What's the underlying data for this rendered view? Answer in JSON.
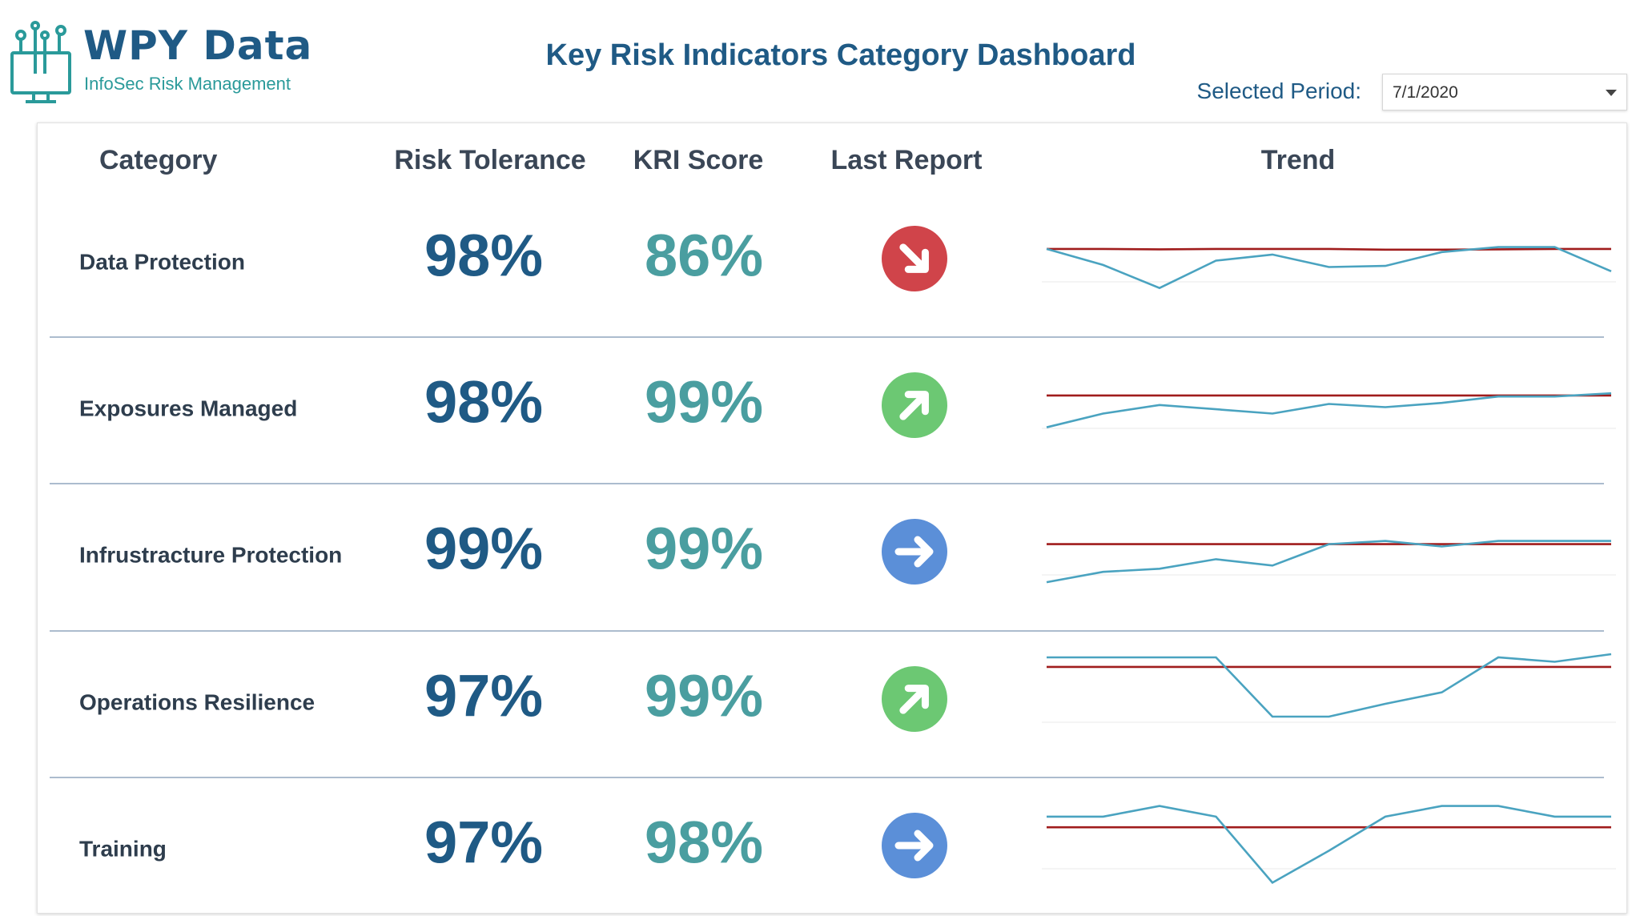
{
  "header": {
    "logo_title": "WPY Data",
    "logo_subtitle": "InfoSec Risk Management",
    "title": "Key Risk Indicators Category Dashboard",
    "period_label": "Selected Period:",
    "period_value": "7/1/2020"
  },
  "table": {
    "columns": [
      "Category",
      "Risk Tolerance",
      "KRI Score",
      "Last Report",
      "Trend"
    ],
    "rows": [
      {
        "category": "Data Protection",
        "risk_tolerance": "98%",
        "kri_score": "86%",
        "last_report": "down",
        "trend": {
          "values": [
            98,
            89.4,
            77,
            91.7,
            95,
            88.3,
            88.9,
            96.3,
            99,
            99,
            86
          ],
          "threshold": [
            98,
            98,
            97.8,
            98,
            98,
            98,
            97.6,
            97.6,
            97.8,
            98,
            98
          ],
          "ylim": [
            70,
            118.6
          ]
        }
      },
      {
        "category": "Exposures Managed",
        "risk_tolerance": "98%",
        "kri_score": "99%",
        "last_report": "up",
        "trend": {
          "values": [
            83,
            89.5,
            93.5,
            91.5,
            89.5,
            94,
            92.5,
            94.5,
            97.5,
            97.5,
            99
          ],
          "threshold": [
            98,
            98,
            98,
            98,
            98,
            98,
            98,
            98,
            98,
            98,
            98
          ],
          "ylim": [
            73.5,
            116
          ]
        }
      },
      {
        "category": "Infrustracture Protection",
        "risk_tolerance": "99%",
        "kri_score": "99%",
        "last_report": "right",
        "trend": {
          "values": [
            94.2,
            95.5,
            95.9,
            97.1,
            96.3,
            99,
            99.4,
            98.7,
            99.4,
            99.4,
            99.4
          ],
          "threshold": [
            99,
            99,
            99,
            99,
            99,
            99,
            99,
            99,
            99,
            99,
            99
          ],
          "ylim": [
            92.7,
            104.1
          ]
        }
      },
      {
        "category": "Operations Resilience",
        "risk_tolerance": "97%",
        "kri_score": "99%",
        "last_report": "up",
        "trend": {
          "values": [
            98.5,
            98.5,
            98.5,
            98.5,
            89.2,
            89.2,
            91.2,
            93,
            98.5,
            97.8,
            99
          ],
          "threshold": [
            97,
            97,
            97,
            97,
            97,
            97,
            97,
            97,
            97,
            97,
            97
          ],
          "ylim": [
            85.3,
            99.5
          ]
        }
      },
      {
        "category": "Training",
        "risk_tolerance": "97%",
        "kri_score": "98%",
        "last_report": "right",
        "trend": {
          "values": [
            98,
            98,
            99,
            98,
            91.8,
            94.8,
            98,
            99,
            99,
            98,
            98
          ],
          "threshold": [
            97,
            97,
            97,
            97,
            97,
            97,
            97,
            97,
            97,
            97,
            97
          ],
          "ylim": [
            91.3,
            99.8
          ]
        }
      }
    ]
  }
}
